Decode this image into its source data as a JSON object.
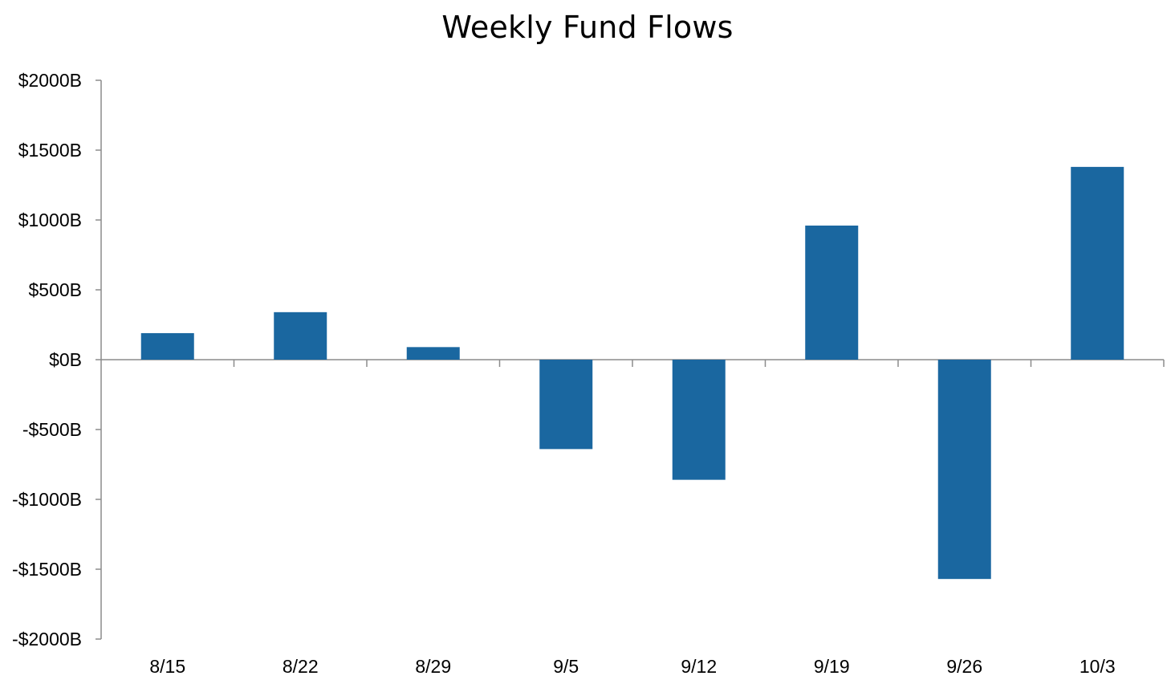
{
  "chart_data": {
    "type": "bar",
    "title": "Weekly Fund Flows",
    "xlabel": "",
    "ylabel": "",
    "categories": [
      "8/15",
      "8/22",
      "8/29",
      "9/5",
      "9/12",
      "9/19",
      "9/26",
      "10/3"
    ],
    "series": [
      {
        "values": [
          190,
          340,
          90,
          -640,
          -860,
          960,
          -1570,
          1380
        ]
      }
    ],
    "ylim": [
      -2000,
      2000
    ],
    "yticks": [
      2000,
      1500,
      1000,
      500,
      0,
      -500,
      -1000,
      -1500,
      -2000
    ],
    "ytick_labels": [
      "$2000B",
      "$1500B",
      "$1000B",
      "$500B",
      "$0B",
      "-$500B",
      "-$1000B",
      "-$1500B",
      "-$2000B"
    ],
    "grid": false,
    "legend": "none",
    "bar_color": "#1a67a0",
    "axis_color": "#8c8c8c"
  }
}
